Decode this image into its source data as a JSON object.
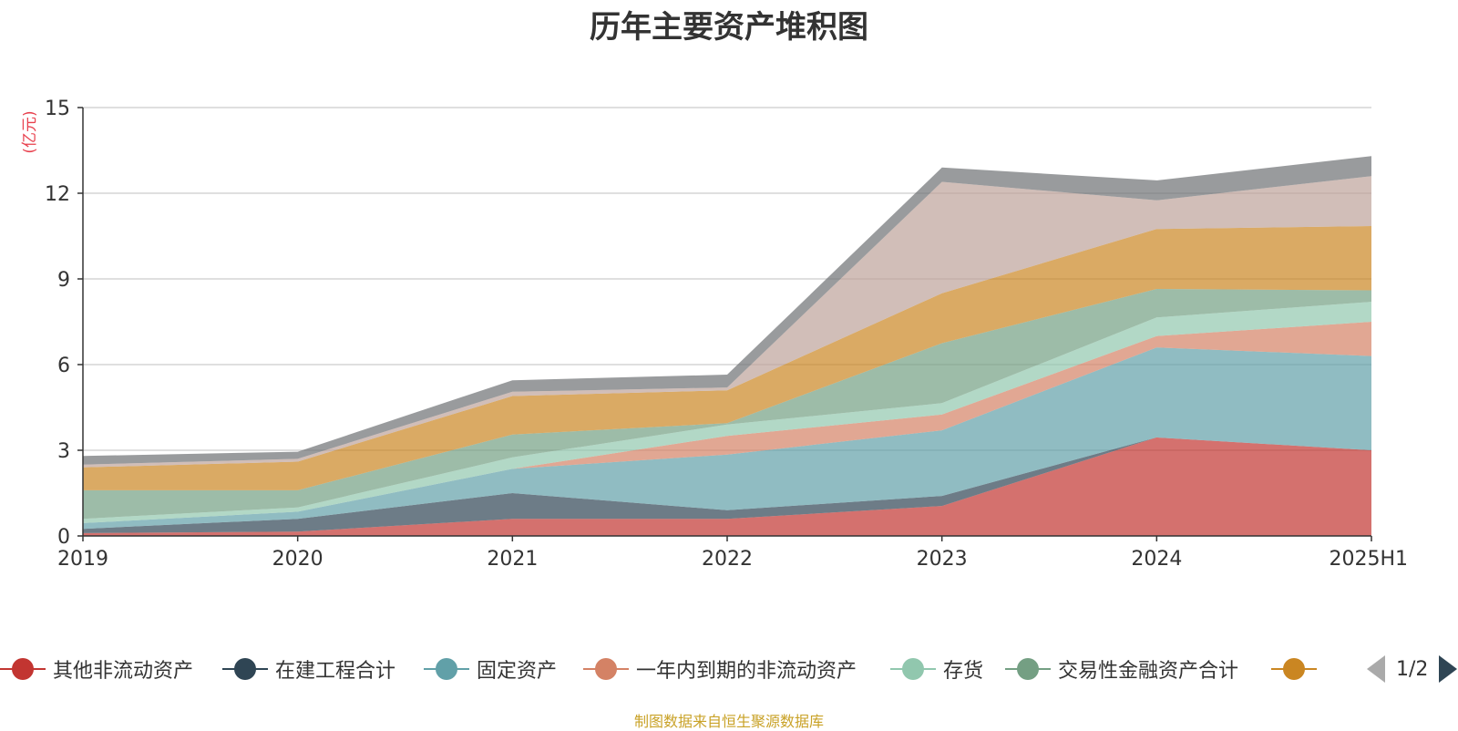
{
  "chart_data": {
    "type": "area",
    "stacked": true,
    "title": "历年主要资产堆积图",
    "ylabel": "(亿元)",
    "categories": [
      "2019",
      "2020",
      "2021",
      "2022",
      "2023",
      "2024",
      "2025H1"
    ],
    "ylim": [
      0,
      15
    ],
    "yticks": [
      0,
      3,
      6,
      9,
      12,
      15
    ],
    "grid": true,
    "legend_position": "bottom",
    "series": [
      {
        "name": "其他非流动资产",
        "color": "#c23531",
        "values": [
          0.1,
          0.15,
          0.6,
          0.6,
          1.05,
          3.45,
          3.0
        ]
      },
      {
        "name": "在建工程合计",
        "color": "#2f4554",
        "values": [
          0.15,
          0.45,
          0.9,
          0.3,
          0.35,
          0.0,
          0.0
        ]
      },
      {
        "name": "固定资产",
        "color": "#61a0a8",
        "values": [
          0.2,
          0.25,
          0.85,
          1.95,
          2.3,
          3.15,
          3.3
        ]
      },
      {
        "name": "一年内到期的非流动资产",
        "color": "#d48265",
        "values": [
          0.0,
          0.0,
          0.0,
          0.65,
          0.55,
          0.4,
          1.2
        ]
      },
      {
        "name": "存货",
        "color": "#91c7ae",
        "values": [
          0.15,
          0.15,
          0.4,
          0.4,
          0.4,
          0.65,
          0.7
        ]
      },
      {
        "name": "交易性金融资产合计",
        "color": "#749f83",
        "values": [
          1.0,
          0.6,
          0.8,
          0.05,
          2.1,
          1.0,
          0.4
        ]
      },
      {
        "name": "",
        "color": "#ca8622",
        "values": [
          0.8,
          1.0,
          1.35,
          1.15,
          1.75,
          2.1,
          2.25
        ]
      },
      {
        "name": "",
        "color": "#bda29a",
        "values": [
          0.1,
          0.1,
          0.15,
          0.1,
          3.9,
          1.0,
          1.75
        ]
      },
      {
        "name": "",
        "color": "#6e7074",
        "values": [
          0.3,
          0.25,
          0.4,
          0.45,
          0.5,
          0.7,
          0.7
        ]
      }
    ]
  },
  "legend": {
    "page": "1/2"
  },
  "footer": {
    "source": "制图数据来自恒生聚源数据库"
  },
  "colors": {
    "unit_text": "#e8414e",
    "source_text": "#c9a227",
    "grid": "#cccccc",
    "axis": "#333333"
  }
}
